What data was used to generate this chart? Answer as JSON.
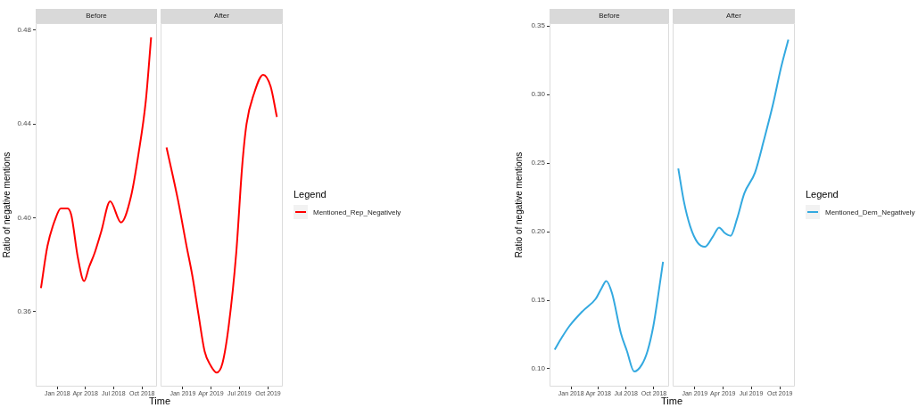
{
  "chart_data": [
    {
      "type": "line",
      "title": "Before",
      "ylabel": "Ratio of negative mentions",
      "xlabel": "Time",
      "xlim": [
        "2017-10-23",
        "2018-11-18"
      ],
      "ylim": [
        0.328,
        0.483
      ],
      "xticks": [
        {
          "value": "2018-01-01",
          "label": "Jan 2018"
        },
        {
          "value": "2018-04-01",
          "label": "Apr 2018"
        },
        {
          "value": "2018-07-01",
          "label": "Jul 2018"
        },
        {
          "value": "2018-10-01",
          "label": "Oct 2018"
        }
      ],
      "yticks": [
        {
          "value": 0.36,
          "label": "0.36"
        },
        {
          "value": 0.4,
          "label": "0.40"
        },
        {
          "value": 0.44,
          "label": "0.44"
        },
        {
          "value": 0.48,
          "label": "0.48"
        }
      ],
      "x": [
        "2017-11-09",
        "2017-11-30",
        "2017-12-24",
        "2018-01-12",
        "2018-02-03",
        "2018-02-15",
        "2018-03-08",
        "2018-03-28",
        "2018-04-13",
        "2018-05-01",
        "2018-05-22",
        "2018-06-20",
        "2018-07-25",
        "2018-08-26",
        "2018-09-19",
        "2018-10-13",
        "2018-10-30"
      ],
      "series": [
        {
          "color": "#ff0000",
          "values": [
            0.37,
            0.388,
            0.399,
            0.404,
            0.404,
            0.401,
            0.383,
            0.373,
            0.379,
            0.385,
            0.394,
            0.407,
            0.398,
            0.409,
            0.427,
            0.45,
            0.477
          ]
        }
      ]
    },
    {
      "type": "line",
      "title": "After",
      "legend": "right",
      "legend_title": "Legend",
      "tick_labels": "x",
      "xlim": [
        "2018-10-22",
        "2019-11-17"
      ],
      "ylim": [
        0.328,
        0.483
      ],
      "xticks": [
        {
          "value": "2019-01-01",
          "label": "Jan 2019"
        },
        {
          "value": "2019-04-01",
          "label": "Apr 2019"
        },
        {
          "value": "2019-07-01",
          "label": "Jul 2019"
        },
        {
          "value": "2019-10-01",
          "label": "Oct 2019"
        }
      ],
      "x": [
        "2018-11-10",
        "2018-12-16",
        "2019-01-13",
        "2019-02-01",
        "2019-02-20",
        "2019-03-12",
        "2019-03-31",
        "2019-04-19",
        "2019-05-08",
        "2019-05-28",
        "2019-06-21",
        "2019-07-10",
        "2019-07-24",
        "2019-08-17",
        "2019-09-15",
        "2019-10-09",
        "2019-10-29"
      ],
      "series": [
        {
          "name": "Mentioned_Rep_Negatively",
          "color": "#ff0000",
          "values": [
            0.43,
            0.408,
            0.388,
            0.375,
            0.359,
            0.343,
            0.337,
            0.334,
            0.338,
            0.354,
            0.385,
            0.422,
            0.44,
            0.453,
            0.461,
            0.456,
            0.443
          ]
        }
      ]
    },
    {
      "type": "line",
      "title": "Before",
      "ylabel": "Ratio of negative mentions",
      "xlabel": "Time",
      "xlim": [
        "2017-10-22",
        "2018-11-20"
      ],
      "ylim": [
        0.087,
        0.352
      ],
      "xticks": [
        {
          "value": "2018-01-01",
          "label": "Jan 2018"
        },
        {
          "value": "2018-04-01",
          "label": "Apr 2018"
        },
        {
          "value": "2018-07-01",
          "label": "Jul 2018"
        },
        {
          "value": "2018-10-01",
          "label": "Oct 2018"
        }
      ],
      "yticks": [
        {
          "value": 0.1,
          "label": "0.10"
        },
        {
          "value": 0.15,
          "label": "0.15"
        },
        {
          "value": 0.2,
          "label": "0.20"
        },
        {
          "value": 0.25,
          "label": "0.25"
        },
        {
          "value": 0.3,
          "label": "0.30"
        },
        {
          "value": 0.35,
          "label": "0.35"
        }
      ],
      "x": [
        "2017-11-08",
        "2017-12-02",
        "2017-12-26",
        "2018-02-08",
        "2018-03-23",
        "2018-04-12",
        "2018-04-27",
        "2018-05-16",
        "2018-06-14",
        "2018-07-04",
        "2018-07-28",
        "2018-08-22",
        "2018-09-10",
        "2018-09-29",
        "2018-10-14",
        "2018-10-31"
      ],
      "series": [
        {
          "color": "#33a9e0",
          "values": [
            0.114,
            0.123,
            0.131,
            0.142,
            0.151,
            0.159,
            0.164,
            0.155,
            0.126,
            0.113,
            0.098,
            0.103,
            0.113,
            0.131,
            0.152,
            0.178
          ]
        }
      ]
    },
    {
      "type": "line",
      "title": "After",
      "legend": "right",
      "legend_title": "Legend",
      "tick_labels": "x",
      "xlim": [
        "2018-10-22",
        "2019-11-18"
      ],
      "ylim": [
        0.087,
        0.352
      ],
      "xticks": [
        {
          "value": "2019-01-01",
          "label": "Jan 2019"
        },
        {
          "value": "2019-04-01",
          "label": "Apr 2019"
        },
        {
          "value": "2019-07-01",
          "label": "Jul 2019"
        },
        {
          "value": "2019-10-01",
          "label": "Oct 2019"
        }
      ],
      "x": [
        "2018-11-09",
        "2018-11-27",
        "2018-12-17",
        "2019-01-10",
        "2019-02-03",
        "2019-02-27",
        "2019-03-20",
        "2019-04-07",
        "2019-04-26",
        "2019-05-16",
        "2019-06-09",
        "2019-07-13",
        "2019-08-11",
        "2019-09-09",
        "2019-10-04",
        "2019-10-28"
      ],
      "series": [
        {
          "name": "Mentioned_Dem_Negatively",
          "color": "#33a9e0",
          "values": [
            0.246,
            0.222,
            0.204,
            0.192,
            0.189,
            0.196,
            0.203,
            0.199,
            0.197,
            0.209,
            0.228,
            0.243,
            0.267,
            0.293,
            0.319,
            0.34
          ]
        }
      ]
    }
  ]
}
